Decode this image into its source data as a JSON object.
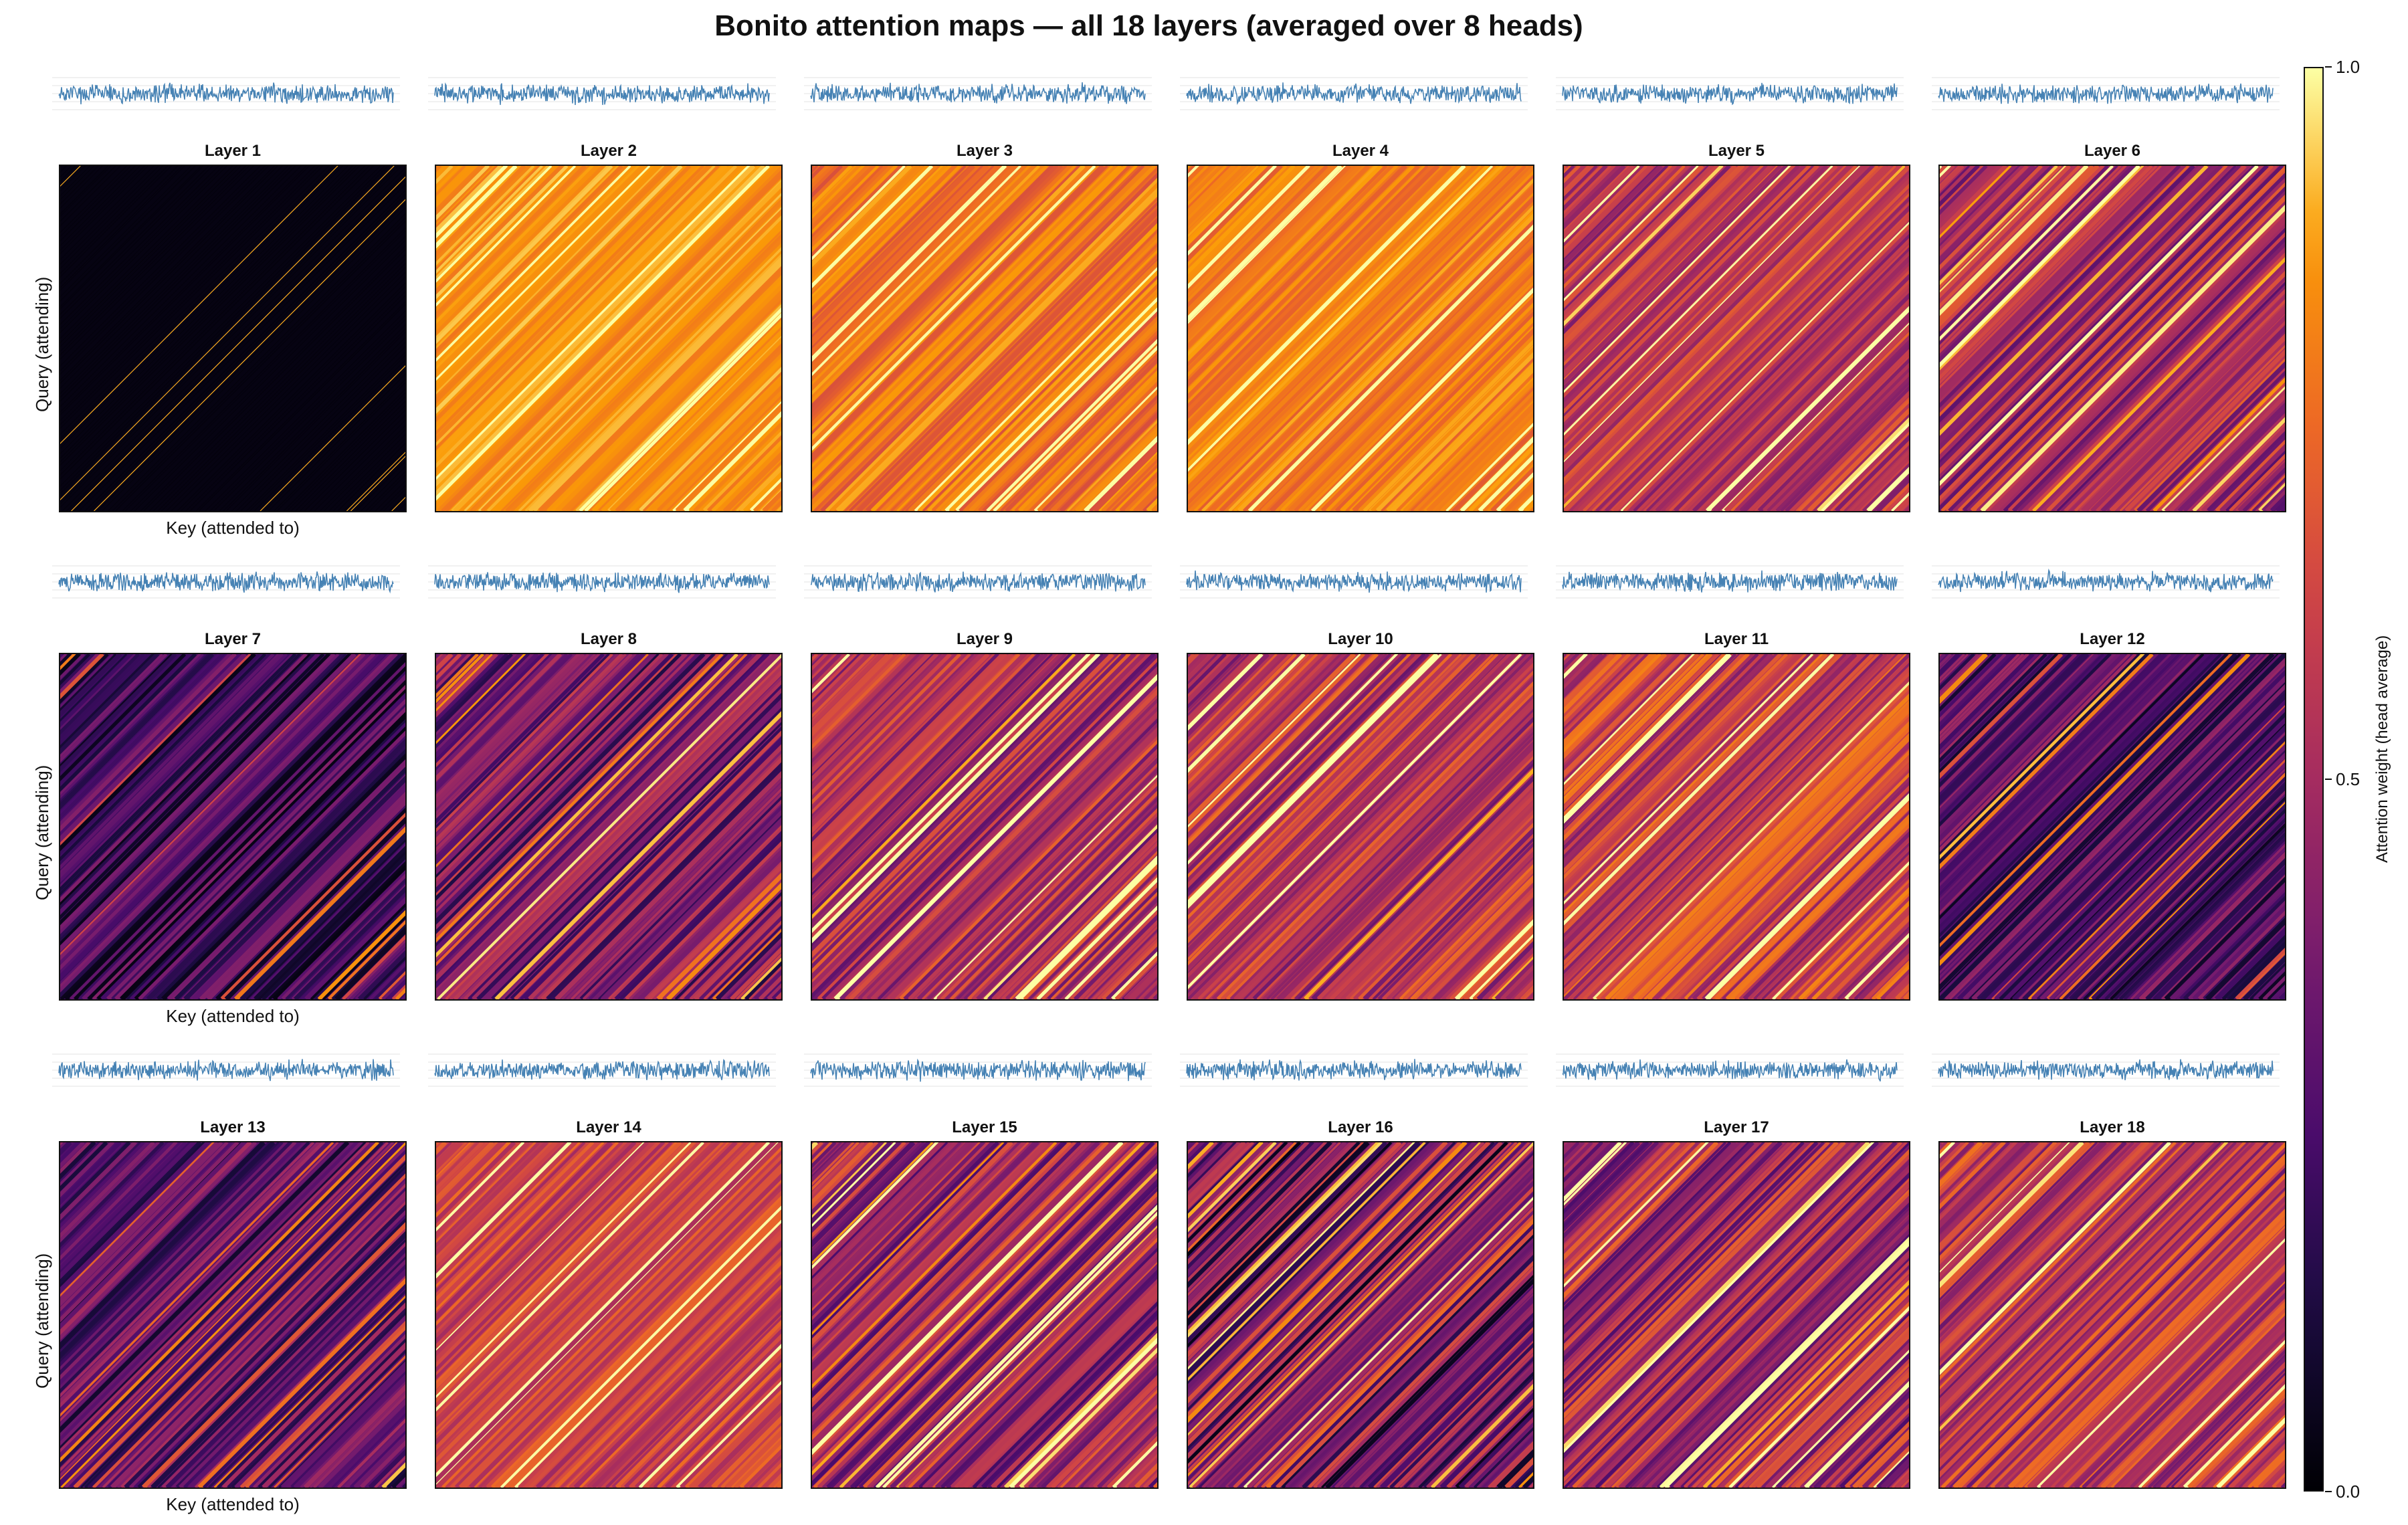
{
  "title": "Bonito attention maps — all 18 layers (averaged over 8 heads)",
  "chart_data": {
    "type": "heatmap",
    "title": "Bonito attention maps — all 18 layers (averaged over 8 heads)",
    "xlabel": "Key (attended to)",
    "ylabel": "Query (attending)",
    "colorbar": {
      "label": "Attention weight (head average)",
      "range": [
        0.0,
        1.0
      ],
      "ticks": [
        "0.0",
        "0.5",
        "1.0"
      ],
      "colormap": "inferno"
    },
    "signal_color": "#4682b4",
    "layers": [
      {
        "name": "Layer 1",
        "mean": 0.03,
        "spread": 0.05
      },
      {
        "name": "Layer 2",
        "mean": 0.86,
        "spread": 0.08
      },
      {
        "name": "Layer 3",
        "mean": 0.78,
        "spread": 0.12
      },
      {
        "name": "Layer 4",
        "mean": 0.8,
        "spread": 0.1
      },
      {
        "name": "Layer 5",
        "mean": 0.55,
        "spread": 0.18
      },
      {
        "name": "Layer 6",
        "mean": 0.5,
        "spread": 0.22
      },
      {
        "name": "Layer 7",
        "mean": 0.22,
        "spread": 0.2
      },
      {
        "name": "Layer 8",
        "mean": 0.38,
        "spread": 0.25
      },
      {
        "name": "Layer 9",
        "mean": 0.52,
        "spread": 0.22
      },
      {
        "name": "Layer 10",
        "mean": 0.55,
        "spread": 0.22
      },
      {
        "name": "Layer 11",
        "mean": 0.6,
        "spread": 0.22
      },
      {
        "name": "Layer 12",
        "mean": 0.28,
        "spread": 0.22
      },
      {
        "name": "Layer 13",
        "mean": 0.3,
        "spread": 0.22
      },
      {
        "name": "Layer 14",
        "mean": 0.62,
        "spread": 0.15
      },
      {
        "name": "Layer 15",
        "mean": 0.48,
        "spread": 0.25
      },
      {
        "name": "Layer 16",
        "mean": 0.35,
        "spread": 0.32
      },
      {
        "name": "Layer 17",
        "mean": 0.5,
        "spread": 0.25
      },
      {
        "name": "Layer 18",
        "mean": 0.55,
        "spread": 0.22
      }
    ]
  }
}
